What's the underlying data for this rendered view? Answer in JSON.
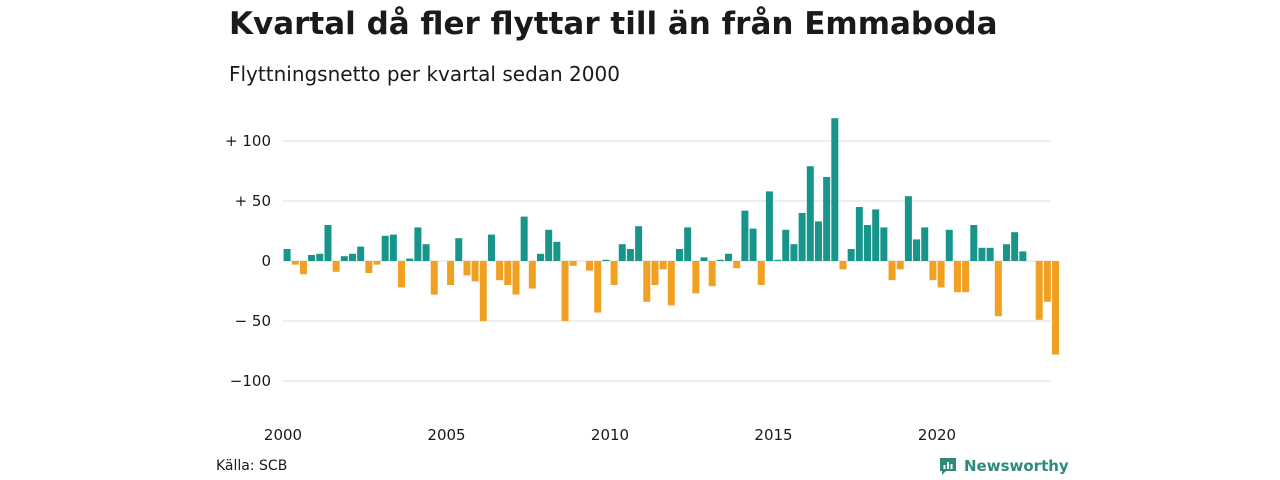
{
  "header": {
    "title": "Kvartal då fler flyttar till än från Emmaboda",
    "subtitle": "Flyttningsnetto per kvartal sedan 2000"
  },
  "footer": {
    "source": "Källa: SCB",
    "brand": "Newsworthy"
  },
  "colors": {
    "positive": "#17958a",
    "negative": "#f2a022",
    "grid": "#dddddd",
    "brand": "#2e8a7a"
  },
  "chart_data": {
    "type": "bar",
    "title": "Kvartal då fler flyttar till än från Emmaboda",
    "subtitle": "Flyttningsnetto per kvartal sedan 2000",
    "xlabel": "",
    "ylabel": "",
    "ylim": [
      -110,
      125
    ],
    "y_ticks": [
      {
        "value": 100,
        "label": "+ 100"
      },
      {
        "value": 50,
        "label": "+  50"
      },
      {
        "value": 0,
        "label": "0"
      },
      {
        "value": -50,
        "label": "− 50"
      },
      {
        "value": -100,
        "label": "−100"
      }
    ],
    "x_ticks": [
      {
        "year": 2000,
        "label": "2000"
      },
      {
        "year": 2005,
        "label": "2005"
      },
      {
        "year": 2010,
        "label": "2010"
      },
      {
        "year": 2015,
        "label": "2015"
      },
      {
        "year": 2020,
        "label": "2020"
      }
    ],
    "start_year": 2000,
    "start_quarter": 1,
    "grid": true,
    "values": [
      10,
      -3,
      -11,
      5,
      6,
      30,
      -9,
      4,
      6,
      12,
      -10,
      -3,
      21,
      22,
      -22,
      2,
      28,
      14,
      -28,
      0,
      -20,
      19,
      -12,
      -17,
      -50,
      22,
      -16,
      -20,
      -28,
      37,
      -23,
      6,
      26,
      16,
      -50,
      -4,
      0,
      -8,
      -43,
      1,
      -20,
      14,
      10,
      29,
      -34,
      -20,
      -7,
      -37,
      10,
      28,
      -27,
      3,
      -21,
      1,
      6,
      -6,
      42,
      27,
      -20,
      58,
      1,
      26,
      14,
      40,
      79,
      33,
      70,
      119,
      -7,
      10,
      45,
      30,
      43,
      28,
      -16,
      -7,
      54,
      18,
      28,
      -16,
      -22,
      26,
      -26,
      -26,
      30,
      11,
      11,
      -46,
      14,
      24,
      8,
      0,
      -49,
      -34,
      -78
    ]
  }
}
